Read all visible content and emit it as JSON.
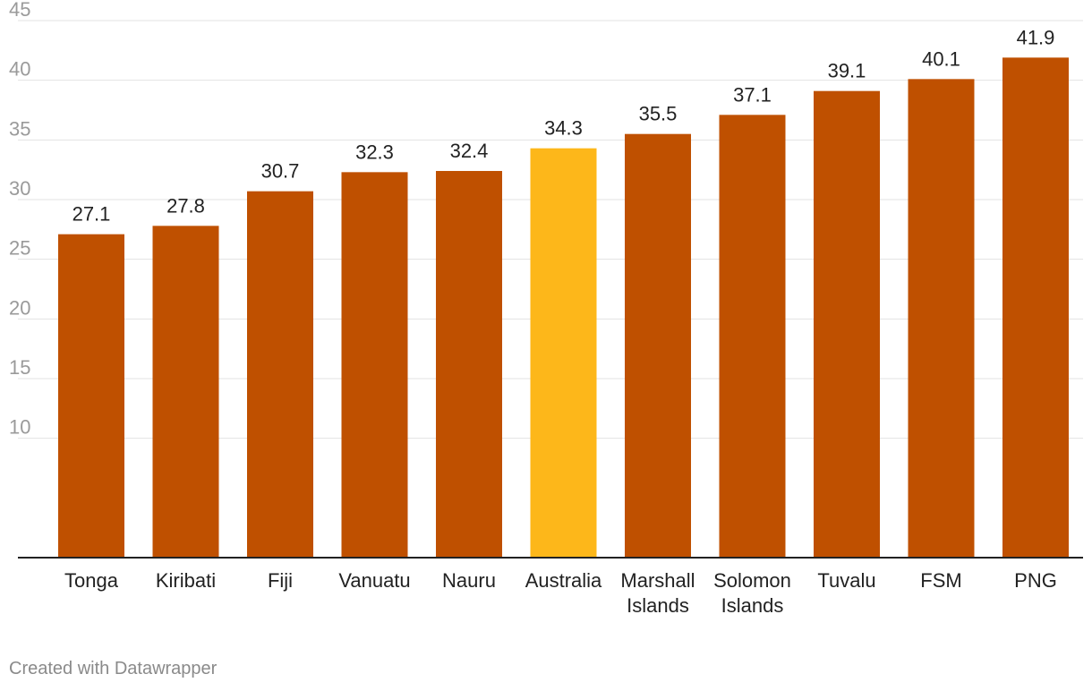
{
  "chart_data": {
    "type": "bar",
    "categories": [
      "Tonga",
      "Kiribati",
      "Fiji",
      "Vanuatu",
      "Nauru",
      "Australia",
      "Marshall Islands",
      "Solomon Islands",
      "Tuvalu",
      "FSM",
      "PNG"
    ],
    "values": [
      27.1,
      27.8,
      30.7,
      32.3,
      32.4,
      34.3,
      35.5,
      37.1,
      39.1,
      40.1,
      41.9
    ],
    "value_labels": [
      "27.1",
      "27.8",
      "30.7",
      "32.3",
      "32.4",
      "34.3",
      "35.5",
      "37.1",
      "39.1",
      "40.1",
      "41.9"
    ],
    "highlight_category": "Australia",
    "yticks": [
      10,
      15,
      20,
      25,
      30,
      35,
      40,
      45
    ],
    "ylim": [
      0,
      45
    ],
    "grid": true,
    "legend": "none",
    "title": "",
    "xlabel": "",
    "ylabel": ""
  },
  "colors": {
    "bar": "#bf5000",
    "highlight": "#fdb71a",
    "grid": "#e3e3e3",
    "axis": "#222222"
  },
  "footer": {
    "credit": "Created with Datawrapper"
  }
}
